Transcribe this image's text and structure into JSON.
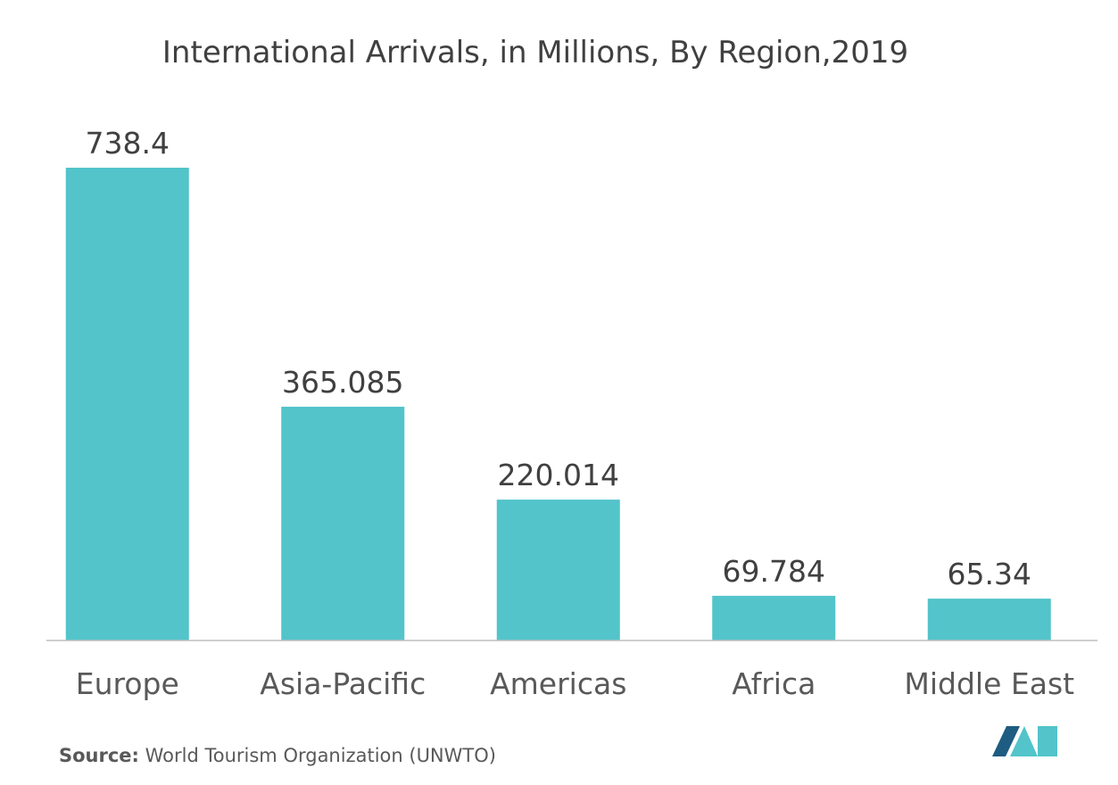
{
  "chart_data": {
    "type": "bar",
    "title": "International Arrivals, in Millions, By Region,2019",
    "categories": [
      "Europe",
      "Asia-Pacific",
      "Americas",
      "Africa",
      "Middle East"
    ],
    "values": [
      738.4,
      365.085,
      220.014,
      69.784,
      65.34
    ],
    "value_labels": [
      "738.4",
      "365.085",
      "220.014",
      "69.784",
      "65.34"
    ],
    "xlabel": "",
    "ylabel": "",
    "ylim": [
      0,
      738.4
    ],
    "grid": false,
    "legend": "none",
    "bar_color": "#52C4CA",
    "axis_color": "#BFBFBF"
  },
  "source": {
    "label": "Source:",
    "text": " World Tourism Organization (UNWTO)"
  },
  "logo": {
    "icon": "mordor-intelligence-logo-icon",
    "colors": [
      "#1E5C82",
      "#52C4CA"
    ]
  }
}
